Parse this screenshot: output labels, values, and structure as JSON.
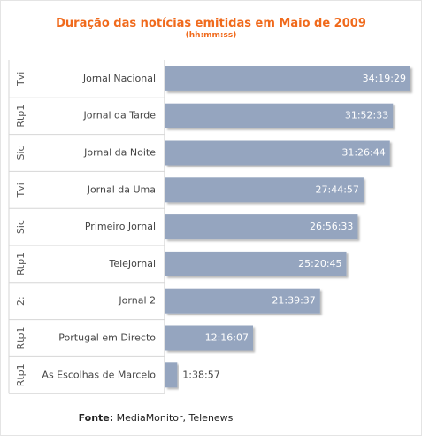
{
  "chart_data": {
    "type": "bar",
    "orientation": "horizontal",
    "title": "Duração das notícias emitidas em Maio de 2009",
    "subtitle": "(hh:mm:ss)",
    "categories": [
      "Jornal Nacional",
      "Jornal da Tarde",
      "Jornal da Noite",
      "Jornal da Uma",
      "Primeiro Jornal",
      "TeleJornal",
      "Jornal 2",
      "Portugal em Directo",
      "As Escolhas de Marcelo"
    ],
    "channels": [
      "Tvi",
      "Rtp1",
      "Sic",
      "Tvi",
      "Sic",
      "Rtp1",
      "2:",
      "Rtp1",
      "Rtp1"
    ],
    "value_labels": [
      "34:19:29",
      "31:52:33",
      "31:26:44",
      "27:44:57",
      "26:56:33",
      "25:20:45",
      "21:39:37",
      "12:16:07",
      "1:38:57"
    ],
    "values_seconds": [
      123569,
      114753,
      113204,
      99897,
      96993,
      91245,
      77977,
      44167,
      5937
    ],
    "bar_color": "#95a5bf",
    "title_color": "#f06a1c",
    "grid": false,
    "legend": "none"
  },
  "source": {
    "label": "Fonte:",
    "text": " MediaMonitor, Telenews"
  }
}
